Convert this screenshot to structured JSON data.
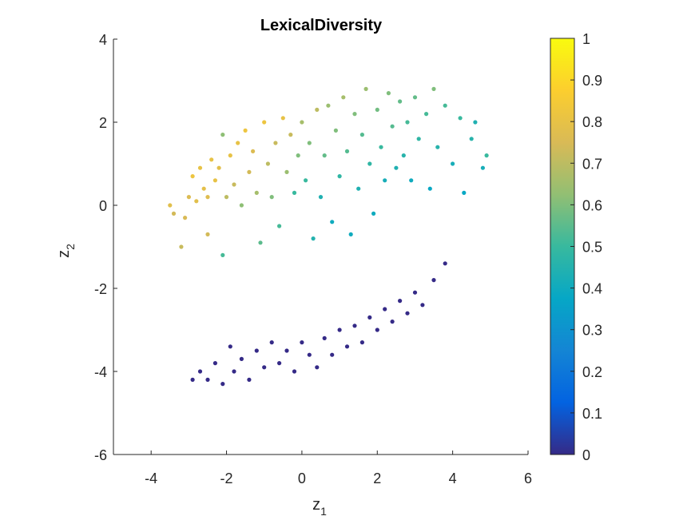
{
  "chart_data": {
    "type": "scatter",
    "title": "LexicalDiversity",
    "xlabel": {
      "base": "z",
      "sub": "1"
    },
    "ylabel": {
      "base": "z",
      "sub": "2"
    },
    "xlim": [
      -5,
      6
    ],
    "ylim": [
      -6,
      4
    ],
    "xticks": [
      -4,
      -2,
      0,
      2,
      4,
      6
    ],
    "yticks": [
      -6,
      -4,
      -2,
      0,
      2,
      4
    ],
    "grid": false,
    "colorbar": {
      "colormap": "parula",
      "range": [
        0,
        1
      ],
      "ticks": [
        0,
        0.1,
        0.2,
        0.3,
        0.4,
        0.5,
        0.6,
        0.7,
        0.8,
        0.9,
        1
      ],
      "tick_labels": [
        "0",
        "0.1",
        "0.2",
        "0.3",
        "0.4",
        "0.5",
        "0.6",
        "0.7",
        "0.8",
        "0.9",
        "1"
      ],
      "stops": [
        "#352a87",
        "#0363e1",
        "#1485d4",
        "#06a7c6",
        "#38b99e",
        "#92bf73",
        "#d9ba56",
        "#fcce2e",
        "#f9fb0e"
      ]
    },
    "upper_cluster_points": [
      [
        -3.5,
        0.0,
        0.78
      ],
      [
        -3.4,
        -0.2,
        0.74
      ],
      [
        -3.2,
        -1.0,
        0.72
      ],
      [
        -3.1,
        -0.3,
        0.75
      ],
      [
        -3.0,
        0.2,
        0.76
      ],
      [
        -2.9,
        0.7,
        0.82
      ],
      [
        -2.8,
        0.1,
        0.78
      ],
      [
        -2.7,
        0.9,
        0.8
      ],
      [
        -2.6,
        0.4,
        0.79
      ],
      [
        -2.5,
        0.2,
        0.77
      ],
      [
        -2.5,
        -0.7,
        0.74
      ],
      [
        -2.4,
        1.1,
        0.8
      ],
      [
        -2.3,
        0.6,
        0.8
      ],
      [
        -2.2,
        0.9,
        0.78
      ],
      [
        -2.1,
        1.7,
        0.62
      ],
      [
        -2.1,
        -1.2,
        0.52
      ],
      [
        -2.0,
        0.2,
        0.7
      ],
      [
        -1.9,
        1.2,
        0.8
      ],
      [
        -1.8,
        0.5,
        0.72
      ],
      [
        -1.7,
        1.5,
        0.8
      ],
      [
        -1.6,
        0.0,
        0.62
      ],
      [
        -1.5,
        1.8,
        0.82
      ],
      [
        -1.4,
        0.8,
        0.74
      ],
      [
        -1.3,
        1.3,
        0.76
      ],
      [
        -1.2,
        0.3,
        0.66
      ],
      [
        -1.1,
        -0.9,
        0.55
      ],
      [
        -1.0,
        2.0,
        0.82
      ],
      [
        -0.9,
        1.0,
        0.7
      ],
      [
        -0.8,
        0.2,
        0.6
      ],
      [
        -0.7,
        1.5,
        0.72
      ],
      [
        -0.6,
        -0.5,
        0.52
      ],
      [
        -0.5,
        2.1,
        0.8
      ],
      [
        -0.4,
        0.8,
        0.64
      ],
      [
        -0.3,
        1.7,
        0.72
      ],
      [
        -0.2,
        0.3,
        0.5
      ],
      [
        -0.1,
        1.2,
        0.6
      ],
      [
        0.0,
        2.0,
        0.66
      ],
      [
        0.1,
        0.6,
        0.5
      ],
      [
        0.2,
        1.5,
        0.6
      ],
      [
        0.3,
        -0.8,
        0.45
      ],
      [
        0.4,
        2.3,
        0.7
      ],
      [
        0.5,
        0.2,
        0.44
      ],
      [
        0.6,
        1.2,
        0.56
      ],
      [
        0.7,
        2.4,
        0.64
      ],
      [
        0.8,
        -0.4,
        0.4
      ],
      [
        0.9,
        1.8,
        0.6
      ],
      [
        1.0,
        0.7,
        0.48
      ],
      [
        1.1,
        2.6,
        0.66
      ],
      [
        1.2,
        1.3,
        0.54
      ],
      [
        1.3,
        -0.7,
        0.4
      ],
      [
        1.4,
        2.2,
        0.6
      ],
      [
        1.5,
        0.4,
        0.44
      ],
      [
        1.6,
        1.7,
        0.54
      ],
      [
        1.7,
        2.8,
        0.64
      ],
      [
        1.8,
        1.0,
        0.48
      ],
      [
        1.9,
        -0.2,
        0.4
      ],
      [
        2.0,
        2.3,
        0.58
      ],
      [
        2.1,
        1.4,
        0.5
      ],
      [
        2.2,
        0.6,
        0.42
      ],
      [
        2.3,
        2.7,
        0.6
      ],
      [
        2.4,
        1.9,
        0.54
      ],
      [
        2.5,
        0.9,
        0.44
      ],
      [
        2.6,
        2.5,
        0.56
      ],
      [
        2.7,
        1.2,
        0.46
      ],
      [
        2.8,
        2.0,
        0.52
      ],
      [
        2.9,
        0.6,
        0.4
      ],
      [
        3.0,
        2.6,
        0.56
      ],
      [
        3.1,
        1.6,
        0.48
      ],
      [
        3.3,
        2.2,
        0.52
      ],
      [
        3.4,
        0.4,
        0.38
      ],
      [
        3.5,
        2.8,
        0.6
      ],
      [
        3.6,
        1.4,
        0.46
      ],
      [
        3.8,
        2.4,
        0.52
      ],
      [
        4.0,
        1.0,
        0.42
      ],
      [
        4.2,
        2.1,
        0.5
      ],
      [
        4.3,
        0.3,
        0.38
      ],
      [
        4.5,
        1.6,
        0.46
      ],
      [
        4.6,
        2.0,
        0.44
      ],
      [
        4.8,
        0.9,
        0.42
      ],
      [
        4.9,
        1.2,
        0.5
      ]
    ],
    "lower_cluster_points": [
      [
        -2.9,
        -4.2,
        0.0
      ],
      [
        -2.7,
        -4.0,
        0.0
      ],
      [
        -2.5,
        -4.2,
        0.0
      ],
      [
        -2.3,
        -3.8,
        0.0
      ],
      [
        -2.1,
        -4.3,
        0.0
      ],
      [
        -1.9,
        -3.4,
        0.0
      ],
      [
        -1.8,
        -4.0,
        0.0
      ],
      [
        -1.6,
        -3.7,
        0.0
      ],
      [
        -1.4,
        -4.2,
        0.0
      ],
      [
        -1.2,
        -3.5,
        0.0
      ],
      [
        -1.0,
        -3.9,
        0.0
      ],
      [
        -0.8,
        -3.3,
        0.0
      ],
      [
        -0.6,
        -3.8,
        0.0
      ],
      [
        -0.4,
        -3.5,
        0.0
      ],
      [
        -0.2,
        -4.0,
        0.0
      ],
      [
        0.0,
        -3.3,
        0.0
      ],
      [
        0.2,
        -3.6,
        0.0
      ],
      [
        0.4,
        -3.9,
        0.0
      ],
      [
        0.6,
        -3.2,
        0.0
      ],
      [
        0.8,
        -3.6,
        0.0
      ],
      [
        1.0,
        -3.0,
        0.0
      ],
      [
        1.2,
        -3.4,
        0.0
      ],
      [
        1.4,
        -2.9,
        0.0
      ],
      [
        1.6,
        -3.3,
        0.0
      ],
      [
        1.8,
        -2.7,
        0.0
      ],
      [
        2.0,
        -3.0,
        0.0
      ],
      [
        2.2,
        -2.5,
        0.0
      ],
      [
        2.4,
        -2.8,
        0.0
      ],
      [
        2.6,
        -2.3,
        0.0
      ],
      [
        2.8,
        -2.6,
        0.0
      ],
      [
        3.0,
        -2.1,
        0.0
      ],
      [
        3.2,
        -2.4,
        0.0
      ],
      [
        3.5,
        -1.8,
        0.0
      ],
      [
        3.8,
        -1.4,
        0.0
      ]
    ]
  }
}
